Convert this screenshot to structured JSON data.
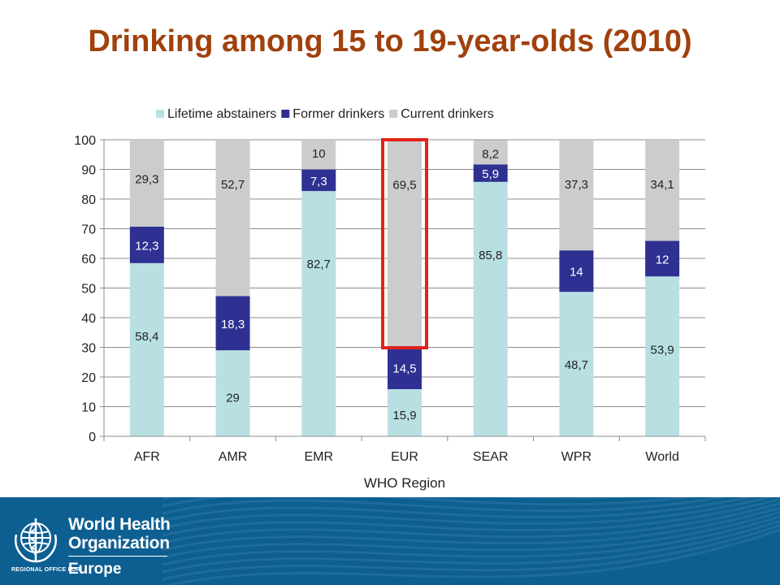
{
  "slide": {
    "title": "Drinking among 15 to 19-year-olds (2010)",
    "title_color": "#a0410d"
  },
  "chart_data": {
    "type": "bar",
    "stacked": true,
    "title": "",
    "xlabel": "WHO Region",
    "ylabel": "",
    "ylim": [
      0,
      100
    ],
    "yticks": [
      0,
      10,
      20,
      30,
      40,
      50,
      60,
      70,
      80,
      90,
      100
    ],
    "grid": true,
    "legend_position": "top",
    "categories": [
      "AFR",
      "AMR",
      "EMR",
      "EUR",
      "SEAR",
      "WPR",
      "World"
    ],
    "highlight_category": "EUR",
    "highlight_color": "#e2231a",
    "series": [
      {
        "name": "Lifetime abstainers",
        "color": "#b8e0e2",
        "values": [
          58.4,
          29,
          82.7,
          15.9,
          85.8,
          48.7,
          53.9
        ],
        "labels": [
          "58,4",
          "29",
          "82,7",
          "15,9",
          "85,8",
          "48,7",
          "53,9"
        ],
        "label_color": "#222222"
      },
      {
        "name": "Former drinkers",
        "color": "#2e3192",
        "values": [
          12.3,
          18.3,
          7.3,
          14.5,
          5.9,
          14,
          12
        ],
        "labels": [
          "12,3",
          "18,3",
          "7,3",
          "14,5",
          "5,9",
          "14",
          "12"
        ],
        "label_color": "#ffffff"
      },
      {
        "name": "Current drinkers",
        "color": "#cccccc",
        "values": [
          29.3,
          52.7,
          10,
          69.5,
          8.2,
          37.3,
          34.1
        ],
        "labels": [
          "29,3",
          "52,7",
          "10",
          "69,5",
          "8,2",
          "37,3",
          "34,1"
        ],
        "label_color": "#222222"
      }
    ]
  },
  "footer": {
    "background": "#0d5f91",
    "org_line1": "World Health",
    "org_line2": "Organization",
    "region_small": "REGIONAL OFFICE FOR",
    "region_big": "Europe"
  }
}
